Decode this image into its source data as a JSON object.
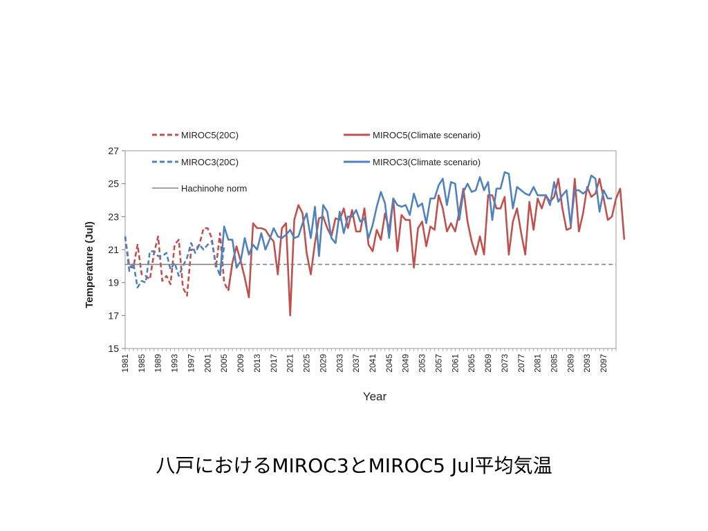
{
  "caption": "八戸におけるMIROC3とMIROC5 Jul平均気温",
  "colors": {
    "miroc5": "#c0504d",
    "miroc3": "#4f81bd",
    "norm": "#808080"
  },
  "chart_data": {
    "type": "line",
    "xlabel": "Year",
    "ylabel": "Temperature (Jul)",
    "ylim": [
      15,
      27
    ],
    "yticks": [
      15,
      17,
      19,
      21,
      23,
      25,
      27
    ],
    "xlim": [
      1981,
      2100
    ],
    "xtick_start": 1981,
    "xtick_step": 4,
    "xtick_end": 2097,
    "grid": false,
    "legend_position": "top",
    "legend": [
      {
        "label": "MIROC5(20C)",
        "color": "#c0504d",
        "dashed": true
      },
      {
        "label": "MIROC5(Climate scenario)",
        "color": "#c0504d",
        "dashed": false
      },
      {
        "label": "MIROC3(20C)",
        "color": "#4f81bd",
        "dashed": true
      },
      {
        "label": "MIROC3(Climate scenario)",
        "color": "#4f81bd",
        "dashed": false
      },
      {
        "label": "Hachinohe norm",
        "color": "#808080",
        "dashed": false
      }
    ],
    "series": [
      {
        "name": "MIROC5(20C)",
        "color": "#c0504d",
        "dashed": true,
        "start_year": 1981,
        "values": [
          21.8,
          20.0,
          19.9,
          21.3,
          19.5,
          19.4,
          19.2,
          20.8,
          21.8,
          19.1,
          19.4,
          18.9,
          21.3,
          21.6,
          18.7,
          18.2,
          21.0,
          21.0,
          21.3,
          22.3,
          22.3,
          21.7,
          19.9,
          22.0,
          19.0,
          18.5,
          20.2
        ]
      },
      {
        "name": "MIROC5(Climate scenario)",
        "color": "#c0504d",
        "dashed": false,
        "start_year": 2006,
        "values": [
          18.5,
          20.2,
          21.2,
          20.3,
          19.3,
          18.1,
          22.6,
          22.3,
          22.3,
          22.2,
          21.8,
          21.5,
          19.5,
          22.3,
          22.6,
          17.0,
          22.8,
          23.7,
          23.2,
          20.8,
          19.5,
          21.4,
          22.9,
          23.0,
          22.3,
          21.8,
          22.9,
          22.8,
          23.5,
          22.3,
          23.4,
          22.1,
          22.1,
          23.5,
          21.3,
          20.9,
          22.2,
          21.6,
          23.2,
          22.2,
          24.1,
          20.9,
          23.1,
          22.8,
          22.8,
          19.9,
          22.3,
          22.7,
          21.2,
          22.4,
          22.2,
          24.3,
          23.5,
          22.1,
          22.6,
          22.1,
          23.3,
          24.7,
          22.7,
          21.5,
          20.7,
          21.8,
          20.7,
          24.3,
          24.3,
          23.5,
          23.5,
          24.2,
          20.7,
          22.7,
          23.5,
          22.0,
          20.7,
          23.9,
          22.2,
          24.1,
          23.5,
          24.3,
          23.9,
          24.2,
          25.3,
          23.5,
          22.2,
          22.3,
          25.3,
          22.1,
          23.2,
          24.8,
          24.2,
          24.4,
          25.3,
          24.1,
          22.8,
          23.0,
          24.1,
          24.7,
          21.6
        ]
      },
      {
        "name": "MIROC3(20C)",
        "color": "#4f81bd",
        "dashed": true,
        "start_year": 1981,
        "values": [
          21.8,
          19.7,
          20.2,
          18.7,
          19.1,
          19.0,
          20.9,
          20.9,
          20.6,
          20.6,
          20.8,
          19.8,
          20.2,
          19.4,
          20.0,
          20.5,
          21.4,
          20.8,
          21.3,
          21.0,
          21.3,
          21.5,
          20.1,
          19.4,
          21.2
        ]
      },
      {
        "name": "MIROC3(Climate scenario)",
        "color": "#4f81bd",
        "dashed": false,
        "start_year": 2004,
        "values": [
          19.4,
          22.4,
          21.6,
          21.6,
          19.9,
          20.3,
          21.7,
          20.7,
          21.3,
          21.0,
          22.0,
          21.0,
          21.6,
          22.3,
          21.8,
          21.7,
          21.9,
          22.2,
          21.7,
          21.8,
          22.6,
          23.2,
          21.7,
          23.6,
          20.6,
          23.7,
          23.3,
          21.7,
          21.4,
          23.3,
          22.0,
          23.0,
          23.0,
          23.4,
          22.7,
          22.9,
          21.7,
          22.5,
          23.6,
          24.5,
          23.8,
          21.7,
          24.1,
          23.7,
          23.6,
          23.7,
          23.1,
          24.4,
          23.6,
          23.8,
          22.6,
          24.1,
          24.1,
          24.9,
          25.3,
          23.7,
          25.1,
          25.0,
          22.8,
          24.5,
          25.0,
          24.5,
          24.6,
          25.4,
          24.6,
          25.1,
          22.8,
          24.7,
          24.7,
          25.7,
          25.6,
          23.5,
          24.8,
          24.6,
          24.4,
          24.3,
          24.8,
          24.3,
          24.3,
          24.3,
          23.7,
          25.1,
          23.9,
          24.3,
          24.6,
          22.5,
          24.6,
          24.6,
          24.4,
          24.6,
          25.5,
          25.3,
          23.3,
          24.6,
          24.1,
          24.1
        ]
      },
      {
        "name": "Hachinohe norm",
        "color": "#808080",
        "dashed": false,
        "kind": "norm",
        "value": 20.1,
        "solid_until": 2006
      }
    ]
  }
}
